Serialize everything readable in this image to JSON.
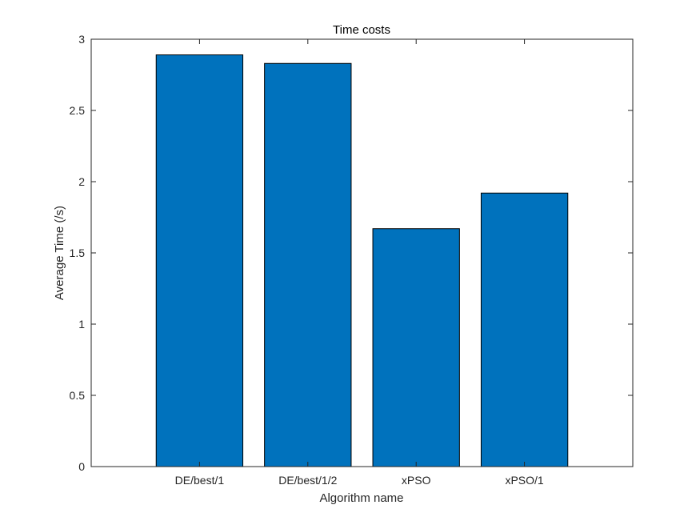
{
  "chart_data": {
    "type": "bar",
    "title": "Time costs",
    "xlabel": "Algorithm name",
    "ylabel": "Average Time (/s)",
    "categories": [
      "DE/best/1",
      "DE/best/1/2",
      "xPSO",
      "xPSO/1"
    ],
    "values": [
      2.89,
      2.83,
      1.67,
      1.92
    ],
    "ylim": [
      0,
      3
    ],
    "xlim": [
      0,
      5
    ],
    "yticks": [
      0,
      0.5,
      1,
      1.5,
      2,
      2.5,
      3
    ],
    "ytick_labels": [
      "0",
      "0.5",
      "1",
      "1.5",
      "2",
      "2.5",
      "3"
    ],
    "grid": false,
    "legend": "none",
    "bar_color": "#0072BD",
    "edge_color": "#000000"
  }
}
